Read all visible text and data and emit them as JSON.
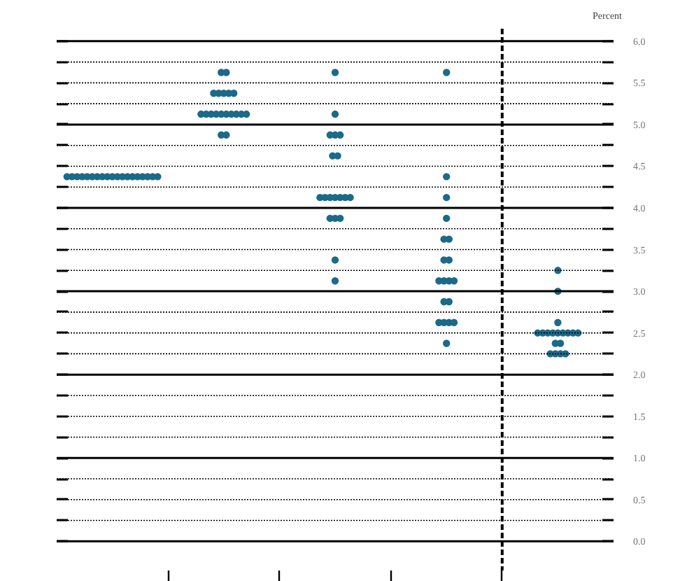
{
  "chart_data": {
    "type": "scatter",
    "ylabel": "Percent",
    "categories": [
      null,
      null,
      null,
      null,
      null
    ],
    "ylim": [
      -0.35,
      6.15
    ],
    "yticks": [
      {
        "value": 0,
        "label": "0.0"
      },
      {
        "value": 0.25,
        "label": null
      },
      {
        "value": 0.5,
        "label": "0.5"
      },
      {
        "value": 0.75,
        "label": null
      },
      {
        "value": 1,
        "label": "1.0"
      },
      {
        "value": 1.25,
        "label": null
      },
      {
        "value": 1.5,
        "label": "1.5"
      },
      {
        "value": 1.75,
        "label": null
      },
      {
        "value": 2,
        "label": "2.0"
      },
      {
        "value": 2.25,
        "label": null
      },
      {
        "value": 2.5,
        "label": "2.5"
      },
      {
        "value": 2.75,
        "label": null
      },
      {
        "value": 3,
        "label": "3.0"
      },
      {
        "value": 3.25,
        "label": null
      },
      {
        "value": 3.5,
        "label": "3.5"
      },
      {
        "value": 3.75,
        "label": null
      },
      {
        "value": 4,
        "label": "4.0"
      },
      {
        "value": 4.25,
        "label": null
      },
      {
        "value": 4.5,
        "label": "4.5"
      },
      {
        "value": 4.75,
        "label": null
      },
      {
        "value": 5,
        "label": "5.0"
      },
      {
        "value": 5.25,
        "label": null
      },
      {
        "value": 5.5,
        "label": "5.5"
      },
      {
        "value": 5.75,
        "label": null
      },
      {
        "value": 6,
        "label": "6.0"
      }
    ],
    "tick_labels": "y",
    "grid": "y",
    "marker": "circle",
    "series": [
      {
        "color": "#1b6a89",
        "values": [
          4.375,
          5.625,
          5.625,
          5.625,
          3.25
        ]
      },
      {
        "color": "#1b6a89",
        "values": [
          4.375,
          5.625,
          5.125,
          4.375,
          3.0
        ]
      },
      {
        "color": "#1b6a89",
        "values": [
          4.375,
          5.375,
          4.875,
          4.125,
          2.625
        ]
      },
      {
        "color": "#1b6a89",
        "values": [
          4.375,
          5.375,
          4.875,
          3.875,
          2.5
        ]
      },
      {
        "color": "#1b6a89",
        "values": [
          4.375,
          5.375,
          4.875,
          3.625,
          2.5
        ]
      },
      {
        "color": "#1b6a89",
        "values": [
          4.375,
          5.375,
          4.625,
          3.625,
          2.5
        ]
      },
      {
        "color": "#1b6a89",
        "values": [
          4.375,
          5.375,
          4.625,
          3.375,
          2.5
        ]
      },
      {
        "color": "#1b6a89",
        "values": [
          4.375,
          5.125,
          4.125,
          3.375,
          2.5
        ]
      },
      {
        "color": "#1b6a89",
        "values": [
          4.375,
          5.125,
          4.125,
          3.125,
          2.5
        ]
      },
      {
        "color": "#1b6a89",
        "values": [
          4.375,
          5.125,
          4.125,
          3.125,
          2.5
        ]
      },
      {
        "color": "#1b6a89",
        "values": [
          4.375,
          5.125,
          4.125,
          3.125,
          2.5
        ]
      },
      {
        "color": "#1b6a89",
        "values": [
          4.375,
          5.125,
          4.125,
          3.125,
          2.5
        ]
      },
      {
        "color": "#1b6a89",
        "values": [
          4.375,
          5.125,
          4.125,
          2.875,
          2.375
        ]
      },
      {
        "color": "#1b6a89",
        "values": [
          4.375,
          5.125,
          4.125,
          2.875,
          2.375
        ]
      },
      {
        "color": "#1b6a89",
        "values": [
          4.375,
          5.125,
          3.875,
          2.625,
          2.25
        ]
      },
      {
        "color": "#1b6a89",
        "values": [
          4.375,
          5.125,
          3.875,
          2.625,
          2.25
        ]
      },
      {
        "color": "#1b6a89",
        "values": [
          4.375,
          5.125,
          3.875,
          2.625,
          2.25
        ]
      },
      {
        "color": "#1b6a89",
        "values": [
          4.375,
          4.875,
          3.375,
          2.625,
          2.25
        ]
      },
      {
        "color": "#1b6a89",
        "values": [
          4.375,
          4.875,
          3.125,
          2.375,
          null
        ]
      }
    ]
  }
}
